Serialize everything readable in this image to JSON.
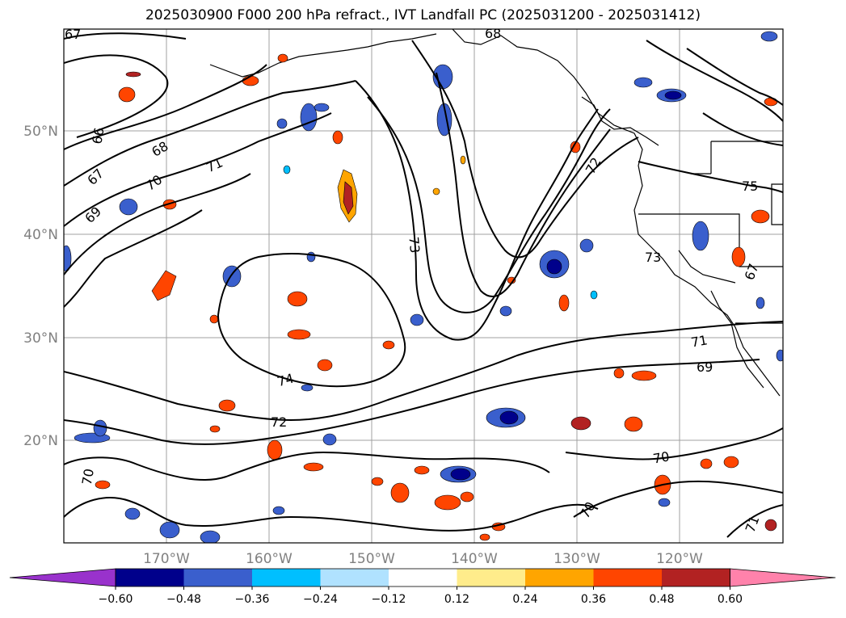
{
  "title": "2025030900 F000 200 hPa refract., IVT Landfall PC (2025031200 - 2025031412)",
  "map": {
    "lon_labels": [
      "170°W",
      "160°W",
      "150°W",
      "140°W",
      "130°W",
      "120°W"
    ],
    "lat_labels": [
      "50°N",
      "40°N",
      "30°N",
      "20°N"
    ],
    "contour_labels": [
      "67",
      "66",
      "68",
      "67",
      "70",
      "69",
      "71",
      "72",
      "73",
      "75",
      "73",
      "74",
      "72",
      "71",
      "69",
      "70",
      "70",
      "70",
      "71",
      "67",
      "68"
    ]
  },
  "colorbar": {
    "ticks": [
      "-0.60",
      "-0.48",
      "-0.36",
      "-0.24",
      "-0.12",
      "0.12",
      "0.24",
      "0.36",
      "0.48",
      "0.60"
    ],
    "colors": [
      "#9932cc",
      "#00008b",
      "#3a5fcd",
      "#00bfff",
      "#b0e2ff",
      "#ffffff",
      "#ffec8b",
      "#ffa500",
      "#ff4500",
      "#b22222",
      "#ff82ab"
    ]
  }
}
